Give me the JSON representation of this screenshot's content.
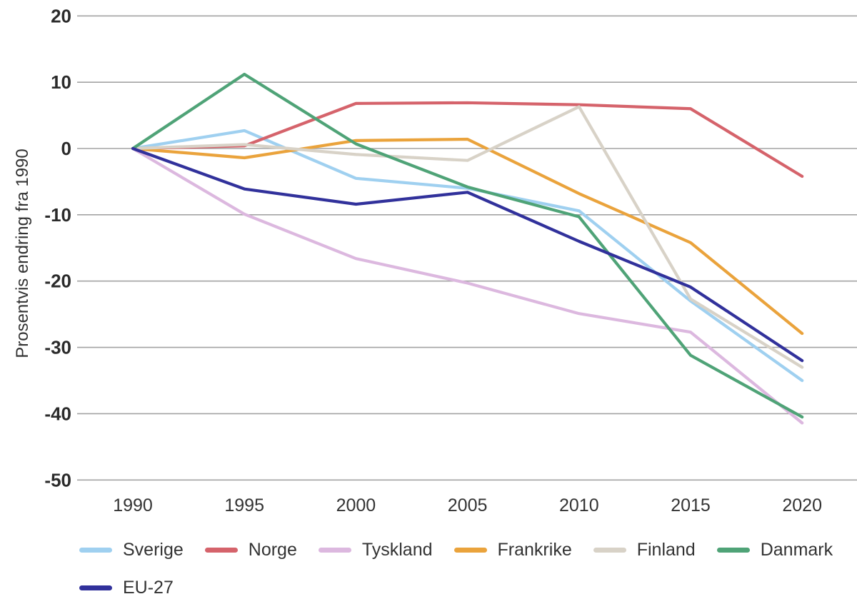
{
  "chart_data": {
    "type": "line",
    "title": "",
    "xlabel": "",
    "ylabel": "Prosentvis endring fra 1990",
    "x": [
      1990,
      1995,
      2000,
      2005,
      2010,
      2015,
      2020
    ],
    "y_ticks": [
      20,
      10,
      0,
      -10,
      -20,
      -30,
      -40,
      -50
    ],
    "ylim": [
      -50,
      20
    ],
    "grid": "horizontal",
    "grid_color": "#a3a3a3",
    "legend_position": "bottom",
    "series": [
      {
        "name": "Sverige",
        "color": "#9fd0f0",
        "values": [
          0,
          2.7,
          -4.5,
          -6.0,
          -9.4,
          -23.0,
          -35.0
        ]
      },
      {
        "name": "Norge",
        "color": "#d5636b",
        "values": [
          0,
          0.4,
          6.8,
          6.9,
          6.6,
          6.0,
          -4.2
        ]
      },
      {
        "name": "Tyskland",
        "color": "#dcb8df",
        "values": [
          0,
          -9.9,
          -16.6,
          -20.3,
          -24.9,
          -27.7,
          -41.4
        ]
      },
      {
        "name": "Frankrike",
        "color": "#eaa33c",
        "values": [
          0,
          -1.4,
          1.2,
          1.4,
          -6.8,
          -14.2,
          -27.9
        ]
      },
      {
        "name": "Finland",
        "color": "#d8d2c7",
        "values": [
          0,
          0.6,
          -0.9,
          -1.8,
          6.3,
          -22.7,
          -33.0
        ]
      },
      {
        "name": "Danmark",
        "color": "#4fa377",
        "values": [
          0,
          11.2,
          0.7,
          -5.8,
          -10.3,
          -31.2,
          -40.5
        ]
      },
      {
        "name": "EU-27",
        "color": "#31319b",
        "values": [
          0,
          -6.1,
          -8.4,
          -6.6,
          -14.0,
          -20.9,
          -32.0
        ]
      }
    ]
  }
}
